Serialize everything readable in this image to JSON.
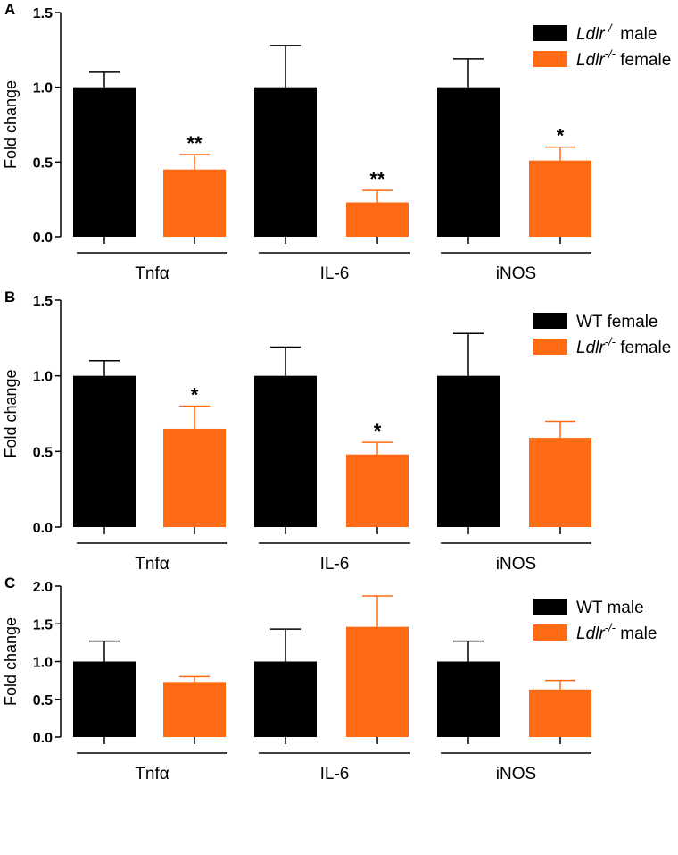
{
  "chart_data": [
    {
      "panel_label": "A",
      "type": "bar",
      "ylabel": "Fold change",
      "ylim": [
        0,
        1.5
      ],
      "yticks": [
        "0.0",
        "0.5",
        "1.0",
        "1.5"
      ],
      "categories": [
        "Tnfα",
        "IL-6",
        "iNOS"
      ],
      "series": [
        {
          "name": "male",
          "genotype": "Ldlr",
          "superscript": "-/-",
          "color": "#000000",
          "values": [
            1.0,
            1.0,
            1.0
          ],
          "errors": [
            0.1,
            0.28,
            0.19
          ]
        },
        {
          "name": "female",
          "genotype": "Ldlr",
          "superscript": "-/-",
          "color": "#FF6A13",
          "values": [
            0.45,
            0.23,
            0.51
          ],
          "errors": [
            0.1,
            0.08,
            0.09
          ]
        }
      ],
      "significance": [
        "**",
        "**",
        "*"
      ],
      "legend_position": "top-right"
    },
    {
      "panel_label": "B",
      "type": "bar",
      "ylabel": "Fold change",
      "ylim": [
        0,
        1.5
      ],
      "yticks": [
        "0.0",
        "0.5",
        "1.0",
        "1.5"
      ],
      "categories": [
        "Tnfα",
        "IL-6",
        "iNOS"
      ],
      "series": [
        {
          "name": "WT female",
          "genotype": "",
          "superscript": "",
          "color": "#000000",
          "values": [
            1.0,
            1.0,
            1.0
          ],
          "errors": [
            0.1,
            0.19,
            0.28
          ]
        },
        {
          "name": "female",
          "genotype": "Ldlr",
          "superscript": "-/-",
          "color": "#FF6A13",
          "values": [
            0.65,
            0.48,
            0.59
          ],
          "errors": [
            0.15,
            0.08,
            0.11
          ]
        }
      ],
      "significance": [
        "*",
        "*",
        ""
      ],
      "legend_position": "top-right"
    },
    {
      "panel_label": "C",
      "type": "bar",
      "ylabel": "Fold change",
      "ylim": [
        0,
        2.0
      ],
      "yticks": [
        "0.0",
        "0.5",
        "1.0",
        "1.5",
        "2.0"
      ],
      "categories": [
        "Tnfα",
        "IL-6",
        "iNOS"
      ],
      "series": [
        {
          "name": "WT male",
          "genotype": "",
          "superscript": "",
          "color": "#000000",
          "values": [
            1.0,
            1.0,
            1.0
          ],
          "errors": [
            0.27,
            0.43,
            0.27
          ]
        },
        {
          "name": "male",
          "genotype": "Ldlr",
          "superscript": "-/-",
          "color": "#FF6A13",
          "values": [
            0.73,
            1.46,
            0.63
          ],
          "errors": [
            0.07,
            0.41,
            0.12
          ]
        }
      ],
      "significance": [
        "",
        "",
        ""
      ],
      "legend_position": "top-right"
    }
  ]
}
